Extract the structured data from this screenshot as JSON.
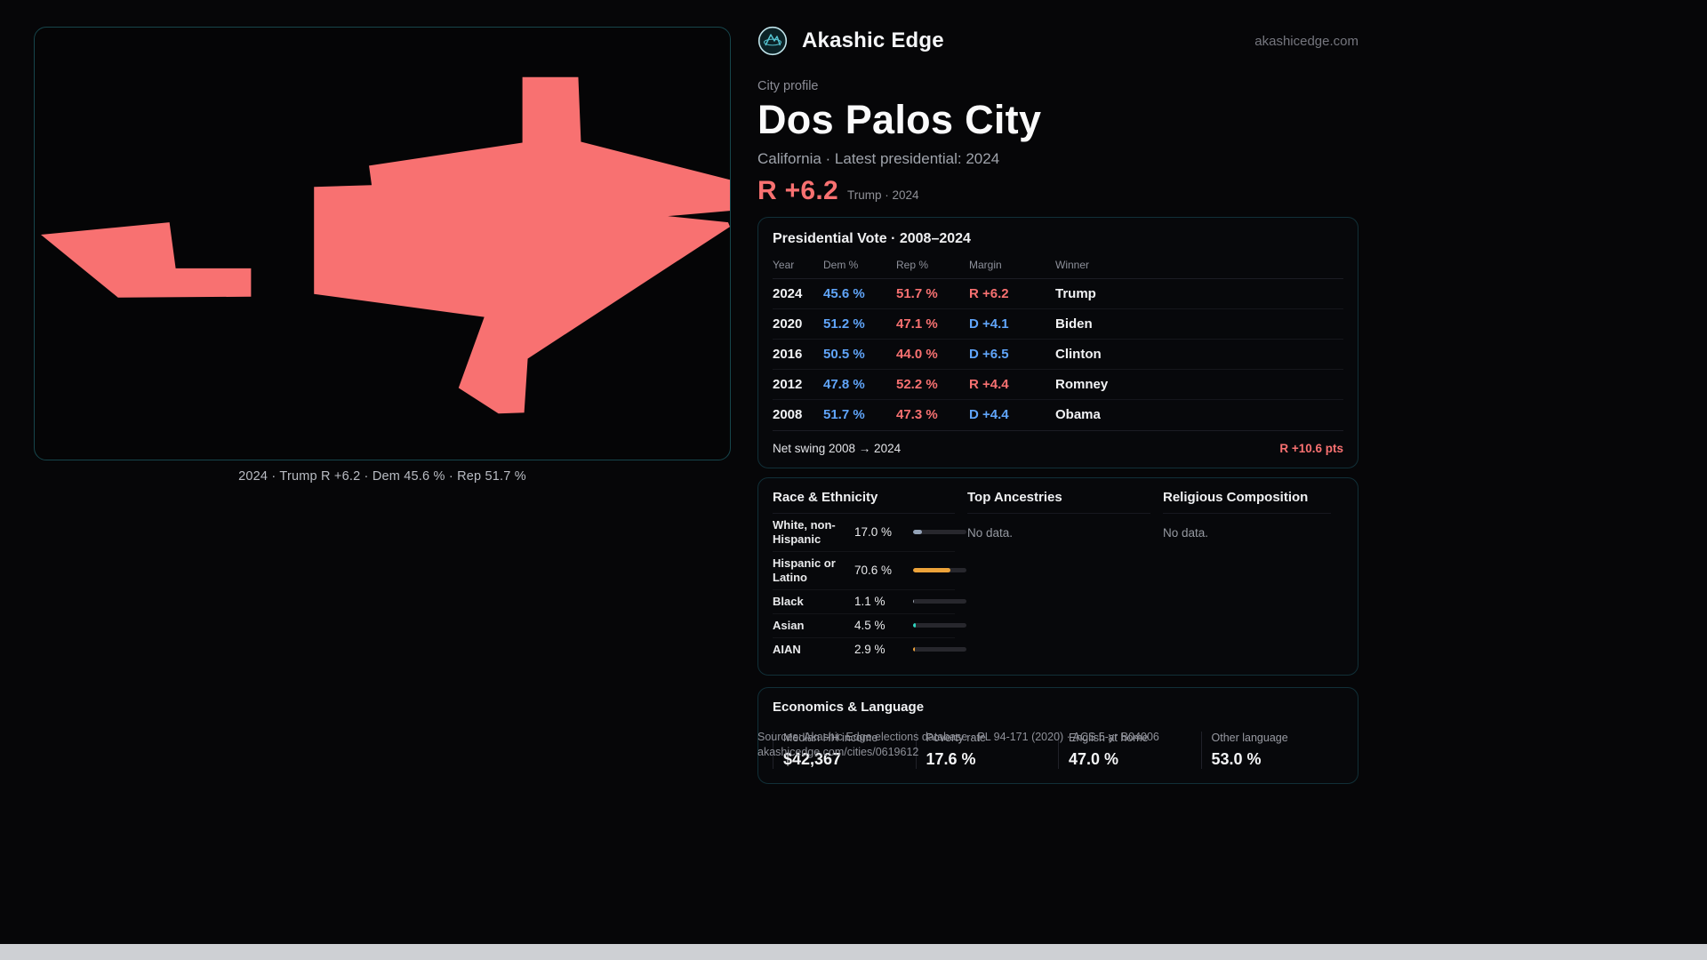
{
  "brand": {
    "name": "Akashic Edge",
    "domain": "akashicedge.com"
  },
  "profile": {
    "eyebrow": "City profile",
    "city": "Dos Palos City",
    "subtitle": "California · Latest presidential: 2024",
    "headline_margin": "R +6.2",
    "headline_note": "Trump · 2024"
  },
  "map": {
    "caption": "2024 · Trump R +6.2 · Dem 45.6 % · Rep 51.7 %"
  },
  "vote_table": {
    "title": "Presidential Vote · 2008–2024",
    "columns": [
      "Year",
      "Dem %",
      "Rep %",
      "Margin",
      "Winner"
    ],
    "rows": [
      {
        "year": "2024",
        "dem": "45.6 %",
        "rep": "51.7 %",
        "margin": "R +6.2",
        "margin_party": "R",
        "winner": "Trump"
      },
      {
        "year": "2020",
        "dem": "51.2 %",
        "rep": "47.1 %",
        "margin": "D +4.1",
        "margin_party": "D",
        "winner": "Biden"
      },
      {
        "year": "2016",
        "dem": "50.5 %",
        "rep": "44.0 %",
        "margin": "D +6.5",
        "margin_party": "D",
        "winner": "Clinton"
      },
      {
        "year": "2012",
        "dem": "47.8 %",
        "rep": "52.2 %",
        "margin": "R +4.4",
        "margin_party": "R",
        "winner": "Romney"
      },
      {
        "year": "2008",
        "dem": "51.7 %",
        "rep": "47.3 %",
        "margin": "D +4.4",
        "margin_party": "D",
        "winner": "Obama"
      }
    ],
    "net_swing_label": "Net swing 2008 → 2024",
    "net_swing_value": "R +10.6 pts"
  },
  "race": {
    "title": "Race & Ethnicity",
    "rows": [
      {
        "label": "White, non-Hispanic",
        "value": "17.0 %",
        "pct": 17.0,
        "color": "#94a3b8"
      },
      {
        "label": "Hispanic or Latino",
        "value": "70.6 %",
        "pct": 70.6,
        "color": "#eda33a"
      },
      {
        "label": "Black",
        "value": "1.1 %",
        "pct": 1.1,
        "color": "#9ca3af"
      },
      {
        "label": "Asian",
        "value": "4.5 %",
        "pct": 4.5,
        "color": "#2dd4bf"
      },
      {
        "label": "AIAN",
        "value": "2.9 %",
        "pct": 2.9,
        "color": "#f0a43c"
      }
    ]
  },
  "ancestries": {
    "title": "Top Ancestries",
    "empty": "No data."
  },
  "religion": {
    "title": "Religious Composition",
    "empty": "No data."
  },
  "economics": {
    "title": "Economics & Language",
    "stats": [
      {
        "label": "Median HH income",
        "value": "$42,367"
      },
      {
        "label": "Poverty rate",
        "value": "17.6 %"
      },
      {
        "label": "English at home",
        "value": "47.0 %"
      },
      {
        "label": "Other language",
        "value": "53.0 %"
      }
    ]
  },
  "footer": {
    "sources": "Sources: Akashic Edge elections database · PL 94-171 (2020) · ACS 5-yr B04006",
    "permalink": "akashicedge.com/cities/0619612"
  },
  "colors": {
    "rep": "#f87171",
    "dem": "#60a5fa",
    "shape": "#f87171"
  }
}
